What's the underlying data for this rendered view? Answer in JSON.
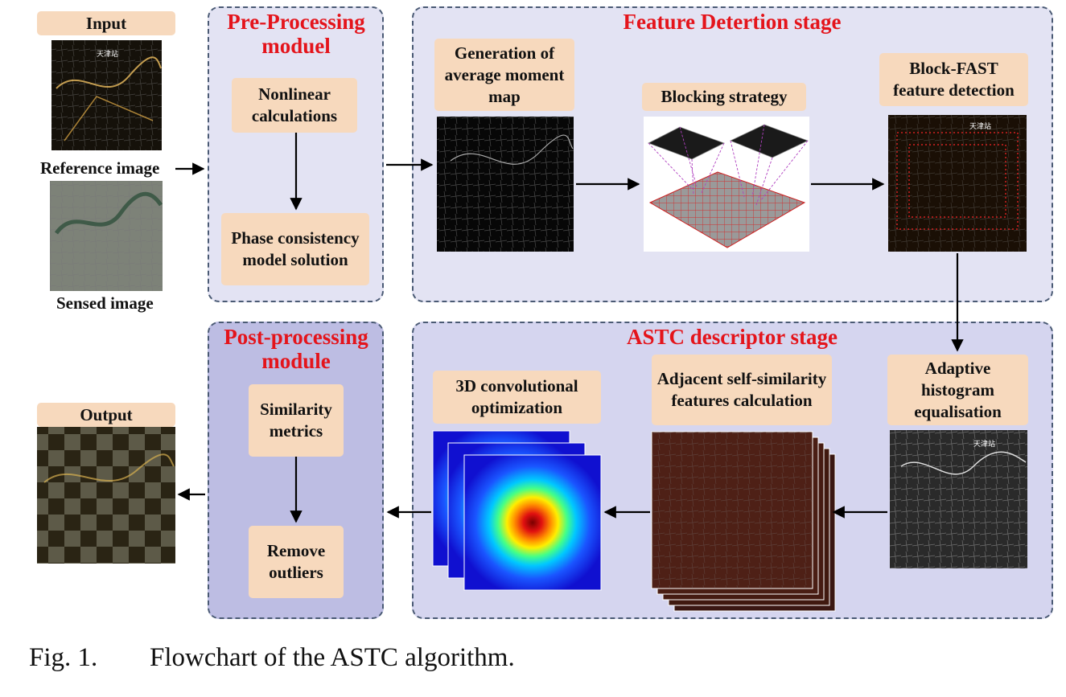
{
  "labels": {
    "input": "Input",
    "reference_image": "Reference image",
    "sensed_image": "Sensed image",
    "output": "Output"
  },
  "stages": {
    "pre_processing": {
      "title": "Pre-Processing moduel",
      "steps": [
        "Nonlinear calculations",
        "Phase consistency model solution"
      ]
    },
    "feature_detection": {
      "title": "Feature Detertion stage",
      "steps": [
        "Generation of average moment map",
        "Blocking strategy",
        "Block-FAST feature detection"
      ]
    },
    "astc_descriptor": {
      "title": "ASTC descriptor stage",
      "steps": [
        "Adaptive histogram equalisation",
        "Adjacent self-similarity features calculation",
        "3D convolutional optimization"
      ]
    },
    "post_processing": {
      "title": "Post-processing module",
      "steps": [
        "Similarity metrics",
        "Remove outliers"
      ]
    }
  },
  "caption": {
    "label": "Fig. 1.",
    "text": "Flowchart of the ASTC algorithm."
  },
  "image_text": {
    "station_label": "天津站"
  },
  "colors": {
    "stage_title": "#e4141b",
    "step_box": "#f7d9bd",
    "panel_border": "#4a5a74",
    "panel_light": "#e3e3f3",
    "panel_dark": "#bdbde3"
  }
}
